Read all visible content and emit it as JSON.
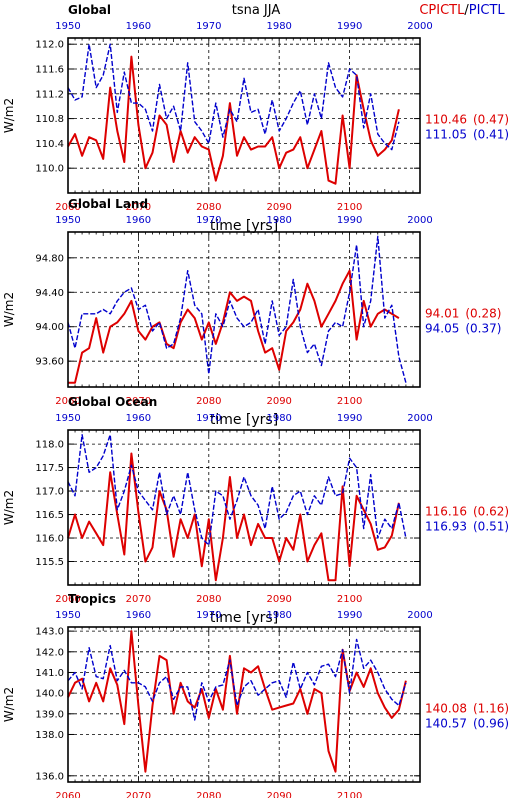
{
  "figure": {
    "center_title": "tsna JJA",
    "title_right_red": "CPICTL",
    "title_slash": "/",
    "title_right_blue": "PICTL",
    "ylabel": "W/m2",
    "xlabel": "time [yrs]",
    "colors": {
      "red": "#dd0000",
      "blue": "#0000cc",
      "black": "#000000"
    }
  },
  "chart_data": [
    {
      "type": "line",
      "title": "Global",
      "ylim": [
        109.6,
        112.1
      ],
      "yticks": [
        110.0,
        110.4,
        110.8,
        111.2,
        111.6,
        112.0
      ],
      "ytick_labels": [
        "110.0",
        "110.4",
        "110.8",
        "111.2",
        "111.6",
        "112.0"
      ],
      "xlim_bottom": [
        2060,
        2110
      ],
      "xticks_bottom": [
        "2060",
        "2070",
        "2080",
        "2090",
        "2100"
      ],
      "xlim_top": [
        1950,
        2000
      ],
      "xticks_top": [
        "1950",
        "1960",
        "1970",
        "1980",
        "1990",
        "2000"
      ],
      "grid": "dashed",
      "series": [
        {
          "name": "CPICTL",
          "color": "#dd0000",
          "x_axis": "bottom",
          "x_start": 2060,
          "values": [
            110.35,
            110.55,
            110.2,
            110.5,
            110.45,
            110.15,
            111.3,
            110.6,
            110.1,
            111.8,
            110.7,
            110.0,
            110.25,
            110.85,
            110.7,
            110.1,
            110.6,
            110.25,
            110.5,
            110.35,
            110.3,
            109.8,
            110.2,
            111.05,
            110.2,
            110.5,
            110.3,
            110.35,
            110.35,
            110.5,
            110.0,
            110.25,
            110.3,
            110.5,
            110.0,
            110.3,
            110.6,
            109.8,
            109.75,
            110.85,
            110.0,
            111.5,
            110.95,
            110.45,
            110.2,
            110.3,
            110.45,
            110.95
          ]
        },
        {
          "name": "PICTL",
          "color": "#0000cc",
          "x_axis": "top",
          "x_start": 1950,
          "values": [
            111.3,
            111.1,
            111.15,
            112.0,
            111.3,
            111.5,
            112.0,
            110.9,
            111.55,
            111.05,
            111.05,
            110.95,
            110.6,
            111.35,
            110.8,
            111.0,
            110.6,
            111.7,
            110.75,
            110.6,
            110.4,
            111.05,
            110.5,
            110.95,
            110.75,
            111.45,
            110.9,
            110.95,
            110.55,
            111.1,
            110.6,
            110.8,
            111.05,
            111.25,
            110.7,
            111.2,
            110.8,
            111.7,
            111.3,
            111.15,
            111.6,
            111.5,
            110.65,
            111.2,
            110.55,
            110.4,
            110.3,
            110.75
          ]
        }
      ],
      "annotations": {
        "red_mean": "110.46",
        "red_std": "(0.47)",
        "blue_mean": "111.05",
        "blue_std": "(0.41)"
      }
    },
    {
      "type": "line",
      "title": "Global Land",
      "ylim": [
        93.3,
        95.1
      ],
      "yticks": [
        93.6,
        94.0,
        94.4,
        94.8
      ],
      "ytick_labels": [
        "93.60",
        "94.00",
        "94.40",
        "94.80"
      ],
      "xlim_bottom": [
        2060,
        2110
      ],
      "xticks_bottom": [
        "2060",
        "2070",
        "2080",
        "2090",
        "2100"
      ],
      "xlim_top": [
        1950,
        2000
      ],
      "xticks_top": [
        "1950",
        "1960",
        "1970",
        "1980",
        "1990",
        "2000"
      ],
      "grid": "dashed",
      "series": [
        {
          "name": "CPICTL",
          "color": "#dd0000",
          "x_axis": "bottom",
          "x_start": 2060,
          "values": [
            93.35,
            93.35,
            93.7,
            93.75,
            94.1,
            93.7,
            94.0,
            94.05,
            94.15,
            94.3,
            93.95,
            93.85,
            94.0,
            94.05,
            93.8,
            93.75,
            94.05,
            94.2,
            94.1,
            93.85,
            94.05,
            93.8,
            94.05,
            94.4,
            94.3,
            94.35,
            94.3,
            93.95,
            93.7,
            93.75,
            93.5,
            93.95,
            94.05,
            94.2,
            94.5,
            94.3,
            94.0,
            94.15,
            94.3,
            94.5,
            94.65,
            93.85,
            94.3,
            94.0,
            94.15,
            94.2,
            94.15,
            94.1
          ]
        },
        {
          "name": "PICTL",
          "color": "#0000cc",
          "x_axis": "top",
          "x_start": 1950,
          "values": [
            94.05,
            93.75,
            94.15,
            94.15,
            94.15,
            94.2,
            94.15,
            94.3,
            94.4,
            94.45,
            94.2,
            94.25,
            93.95,
            94.05,
            93.75,
            93.8,
            94.1,
            94.65,
            94.25,
            94.15,
            93.45,
            94.15,
            94.0,
            94.3,
            94.1,
            94.0,
            94.05,
            94.2,
            93.8,
            94.3,
            93.9,
            94.0,
            94.55,
            94.0,
            93.7,
            93.8,
            93.55,
            93.95,
            94.05,
            94.0,
            94.4,
            94.95,
            94.0,
            94.3,
            95.05,
            94.1,
            94.25,
            93.65,
            93.35
          ]
        }
      ],
      "annotations": {
        "red_mean": "94.01",
        "red_std": "(0.28)",
        "blue_mean": "94.05",
        "blue_std": "(0.37)"
      }
    },
    {
      "type": "line",
      "title": "Global Ocean",
      "ylim": [
        115.0,
        118.3
      ],
      "yticks": [
        115.5,
        116.0,
        116.5,
        117.0,
        117.5,
        118.0
      ],
      "ytick_labels": [
        "115.5",
        "116.0",
        "116.5",
        "117.0",
        "117.5",
        "118.0"
      ],
      "xlim_bottom": [
        2060,
        2110
      ],
      "xticks_bottom": [
        "2060",
        "2070",
        "2080",
        "2090",
        "2100"
      ],
      "xlim_top": [
        1950,
        2000
      ],
      "xticks_top": [
        "1950",
        "1960",
        "1970",
        "1980",
        "1990",
        "2000"
      ],
      "grid": "dashed",
      "series": [
        {
          "name": "CPICTL",
          "color": "#dd0000",
          "x_axis": "bottom",
          "x_start": 2060,
          "values": [
            116.0,
            116.5,
            116.0,
            116.35,
            116.1,
            115.85,
            117.4,
            116.5,
            115.65,
            117.8,
            116.55,
            115.5,
            115.8,
            117.0,
            116.6,
            115.6,
            116.4,
            116.0,
            116.5,
            115.4,
            116.4,
            115.1,
            116.0,
            117.3,
            116.0,
            116.5,
            115.85,
            116.3,
            116.0,
            116.0,
            115.5,
            116.0,
            115.75,
            116.5,
            115.5,
            115.85,
            116.1,
            115.1,
            115.1,
            117.1,
            115.4,
            116.9,
            116.6,
            116.3,
            115.75,
            115.8,
            116.05,
            116.75
          ]
        },
        {
          "name": "PICTL",
          "color": "#0000cc",
          "x_axis": "top",
          "x_start": 1950,
          "values": [
            117.2,
            116.9,
            118.2,
            117.4,
            117.5,
            117.75,
            118.2,
            116.6,
            117.0,
            117.55,
            117.0,
            116.8,
            116.6,
            117.4,
            116.5,
            116.9,
            116.5,
            117.4,
            116.6,
            116.0,
            115.85,
            117.0,
            116.9,
            116.4,
            116.8,
            117.3,
            116.9,
            116.7,
            116.2,
            117.1,
            116.4,
            116.55,
            116.9,
            117.0,
            116.5,
            116.9,
            116.7,
            117.3,
            116.9,
            116.95,
            117.7,
            117.5,
            116.2,
            117.35,
            116.0,
            116.4,
            116.2,
            116.75,
            116.0
          ]
        }
      ],
      "annotations": {
        "red_mean": "116.16",
        "red_std": "(0.62)",
        "blue_mean": "116.93",
        "blue_std": "(0.51)"
      }
    },
    {
      "type": "line",
      "title": "Tropics",
      "ylim": [
        135.7,
        143.2
      ],
      "yticks": [
        136.0,
        138.0,
        139.0,
        140.0,
        141.0,
        142.0,
        143.0
      ],
      "ytick_labels": [
        "136.0",
        "138.0",
        "139.0",
        "140.0",
        "141.0",
        "142.0",
        "143.0"
      ],
      "y_scale_note": "ticks as printed on the axis",
      "xlim_bottom": [
        2060,
        2110
      ],
      "xticks_bottom": [
        "2060",
        "2070",
        "2080",
        "2090",
        "2100"
      ],
      "xlim_top": [
        1950,
        2000
      ],
      "xticks_top": [
        "1950",
        "1960",
        "1970",
        "1980",
        "1990",
        "2000"
      ],
      "grid": "dashed",
      "series": [
        {
          "name": "CPICTL",
          "color": "#dd0000",
          "x_axis": "bottom",
          "x_start": 2060,
          "values": [
            139.8,
            140.5,
            140.7,
            139.6,
            140.5,
            139.6,
            141.2,
            140.4,
            138.5,
            143.0,
            139.4,
            136.2,
            139.4,
            141.8,
            141.6,
            139.0,
            140.5,
            139.6,
            139.3,
            140.2,
            138.8,
            140.2,
            139.2,
            141.8,
            139.0,
            141.2,
            141.0,
            141.3,
            140.2,
            139.2,
            139.3,
            139.4,
            139.5,
            140.2,
            139.0,
            140.2,
            140.0,
            137.2,
            136.2,
            142.1,
            140.1,
            141.0,
            140.3,
            141.2,
            140.0,
            139.3,
            138.8,
            139.2,
            140.6
          ]
        },
        {
          "name": "PICTL",
          "color": "#0000cc",
          "x_axis": "top",
          "x_start": 1950,
          "values": [
            140.6,
            141.0,
            140.2,
            142.2,
            140.8,
            140.7,
            142.3,
            140.6,
            141.1,
            140.5,
            140.5,
            140.3,
            139.6,
            140.5,
            140.8,
            139.7,
            140.3,
            140.3,
            138.7,
            140.5,
            139.6,
            140.3,
            140.4,
            141.6,
            139.4,
            140.3,
            140.6,
            139.9,
            140.2,
            140.5,
            140.6,
            139.8,
            141.5,
            140.2,
            141.0,
            140.4,
            141.3,
            141.4,
            140.8,
            142.1,
            140.0,
            142.6,
            141.2,
            141.6,
            141.0,
            140.2,
            139.7,
            139.4,
            140.5
          ]
        }
      ],
      "annotations": {
        "red_mean": "140.08",
        "red_std": "(1.16)",
        "blue_mean": "140.57",
        "blue_std": "(0.96)"
      }
    }
  ]
}
